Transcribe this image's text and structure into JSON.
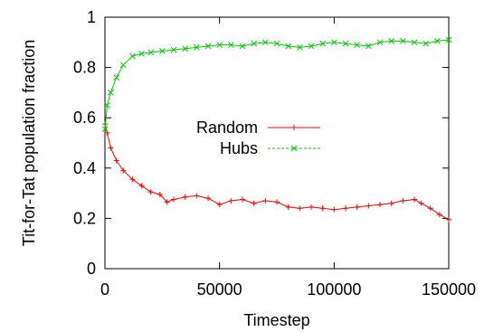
{
  "chart_data": {
    "type": "line",
    "title": "",
    "xlabel": "Timestep",
    "ylabel": "Tit-for-Tat population fraction",
    "xlim": [
      0,
      150000
    ],
    "ylim": [
      0,
      1
    ],
    "x_ticks": [
      0,
      50000,
      100000,
      150000
    ],
    "x_tick_labels": [
      "0",
      "50000",
      "100000",
      "150000"
    ],
    "y_ticks": [
      0,
      0.2,
      0.4,
      0.6,
      0.8,
      1
    ],
    "y_tick_labels": [
      "0",
      "0.2",
      "0.4",
      "0.6",
      "0.8",
      "1"
    ],
    "legend_position": "center",
    "grid": false,
    "series": [
      {
        "name": "Random",
        "color": "#ff0000",
        "marker": "plus",
        "x": [
          0,
          1000,
          2500,
          5000,
          8000,
          12000,
          16000,
          20000,
          24000,
          27000,
          30000,
          35000,
          40000,
          45000,
          50000,
          55000,
          60000,
          65000,
          70000,
          75000,
          80000,
          85000,
          90000,
          95000,
          100000,
          105000,
          110000,
          115000,
          120000,
          125000,
          130000,
          135000,
          138000,
          142000,
          146000,
          150000
        ],
        "y": [
          0.575,
          0.54,
          0.48,
          0.43,
          0.39,
          0.355,
          0.33,
          0.305,
          0.295,
          0.265,
          0.275,
          0.285,
          0.29,
          0.28,
          0.255,
          0.27,
          0.275,
          0.26,
          0.27,
          0.265,
          0.245,
          0.24,
          0.245,
          0.24,
          0.235,
          0.24,
          0.245,
          0.25,
          0.255,
          0.26,
          0.27,
          0.275,
          0.26,
          0.24,
          0.215,
          0.195
        ]
      },
      {
        "name": "Hubs",
        "color": "#00cc00",
        "marker": "cross",
        "x": [
          0,
          1000,
          2500,
          5000,
          8000,
          12000,
          16000,
          20000,
          25000,
          30000,
          35000,
          40000,
          45000,
          50000,
          55000,
          60000,
          65000,
          70000,
          75000,
          80000,
          85000,
          90000,
          95000,
          100000,
          105000,
          110000,
          115000,
          120000,
          125000,
          130000,
          135000,
          140000,
          145000,
          150000
        ],
        "y": [
          0.555,
          0.65,
          0.7,
          0.76,
          0.81,
          0.845,
          0.855,
          0.86,
          0.865,
          0.87,
          0.875,
          0.88,
          0.885,
          0.89,
          0.89,
          0.885,
          0.895,
          0.9,
          0.895,
          0.885,
          0.88,
          0.885,
          0.895,
          0.9,
          0.895,
          0.89,
          0.885,
          0.9,
          0.905,
          0.905,
          0.9,
          0.895,
          0.905,
          0.91
        ]
      }
    ]
  }
}
